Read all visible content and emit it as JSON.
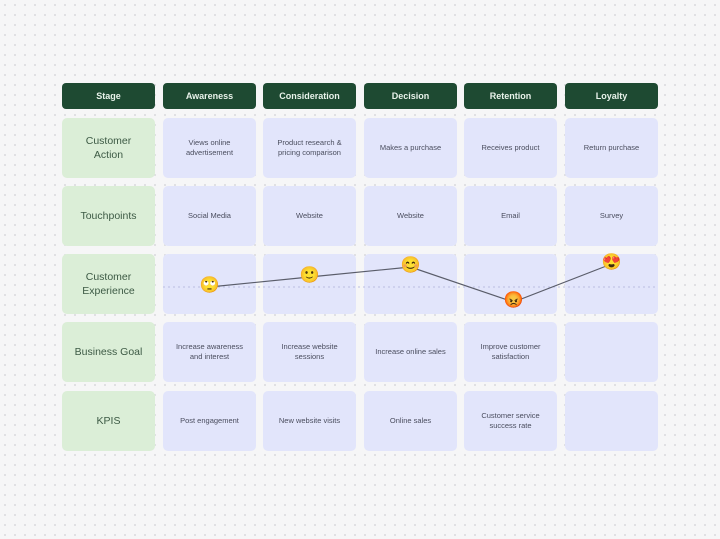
{
  "headers": [
    "Stage",
    "Awareness",
    "Consideration",
    "Decision",
    "Retention",
    "Loyalty"
  ],
  "rows": [
    {
      "label": "Customer Action",
      "cells": [
        "Views online advertisement",
        "Product research & pricing comparison",
        "Makes a purchase",
        "Receives product",
        "Return purchase"
      ]
    },
    {
      "label": "Touchpoints",
      "cells": [
        "Social Media",
        "Website",
        "Website",
        "Email",
        "Survey"
      ]
    },
    {
      "label": "Customer Experience",
      "cells": [
        "",
        "",
        "",
        "",
        ""
      ]
    },
    {
      "label": "Business Goal",
      "cells": [
        "Increase awareness and interest",
        "Increase website sessions",
        "Increase online sales",
        "Improve customer satisfaction",
        ""
      ]
    },
    {
      "label": "KPIS",
      "cells": [
        "Post engagement",
        "New website visits",
        "Online sales",
        "Customer service success rate",
        ""
      ]
    }
  ],
  "experience": [
    {
      "stage": "Awareness",
      "emoji": "🙄",
      "icon": "eye-roll-face-icon",
      "level": 0
    },
    {
      "stage": "Consideration",
      "emoji": "🙂",
      "icon": "smiling-face-icon",
      "level": 1
    },
    {
      "stage": "Decision",
      "emoji": "😊",
      "icon": "happy-face-icon",
      "level": 2
    },
    {
      "stage": "Retention",
      "emoji": "😡",
      "icon": "angry-face-icon",
      "level": -1.5
    },
    {
      "stage": "Loyalty",
      "emoji": "😍",
      "icon": "heart-eyes-face-icon",
      "level": 2.3
    }
  ],
  "colors": {
    "header": "#1e4a32",
    "label_cell": "#dbeed7",
    "data_cell": "#e2e5fb",
    "line": "#5a5d6a"
  }
}
